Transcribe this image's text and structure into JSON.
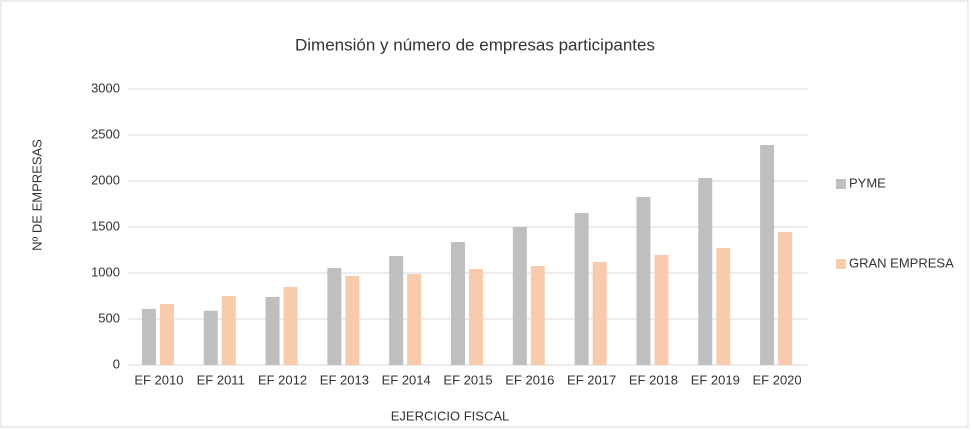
{
  "chart_data": {
    "type": "bar",
    "title": "Dimensión  y número  de  empresas  participantes",
    "x_label": "EJERCICIO FISCAL",
    "y_label": "Nº DE EMPRESAS",
    "categories": [
      "EF 2010",
      "EF 2011",
      "EF 2012",
      "EF 2013",
      "EF 2014",
      "EF 2015",
      "EF 2016",
      "EF 2017",
      "EF 2018",
      "EF 2019",
      "EF 2020"
    ],
    "series": [
      {
        "name": "PYME",
        "color": "#bfbfbf",
        "values": [
          610,
          590,
          740,
          1055,
          1185,
          1337,
          1500,
          1652,
          1826,
          2033,
          2391
        ]
      },
      {
        "name": "GRAN EMPRESA",
        "color": "#f8cbad",
        "values": [
          663,
          750,
          848,
          967,
          989,
          1043,
          1076,
          1120,
          1196,
          1272,
          1446
        ]
      }
    ],
    "ylim": [
      0,
      3000
    ],
    "yticks": [
      0,
      500,
      1000,
      1500,
      2000,
      2500,
      3000
    ],
    "grid": true,
    "legend": "right"
  }
}
